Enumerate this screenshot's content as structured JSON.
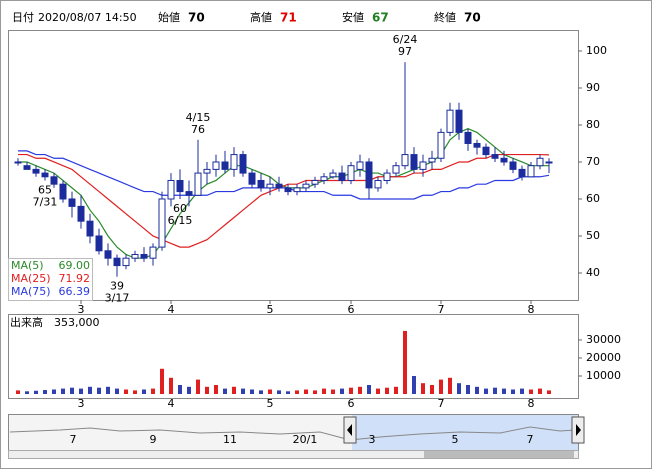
{
  "header": {
    "date_label": "日付",
    "date": "2020/08/07 14:50",
    "fields": [
      {
        "label": "始値",
        "value": 70,
        "color": "#000000"
      },
      {
        "label": "高値",
        "value": 71,
        "color": "#e00000"
      },
      {
        "label": "安値",
        "value": 67,
        "color": "#208020"
      },
      {
        "label": "終値",
        "value": 70,
        "color": "#000000"
      }
    ]
  },
  "chart_data": [
    {
      "type": "candlestick",
      "categories": [
        null,
        null,
        null,
        null,
        null,
        null,
        null,
        "3",
        null,
        null,
        null,
        null,
        null,
        null,
        null,
        null,
        null,
        "4",
        null,
        null,
        null,
        null,
        null,
        null,
        null,
        null,
        null,
        null,
        "5",
        null,
        null,
        null,
        null,
        null,
        null,
        null,
        null,
        "6",
        null,
        null,
        null,
        null,
        null,
        null,
        null,
        null,
        null,
        "7",
        null,
        null,
        null,
        null,
        null,
        null,
        null,
        null,
        null,
        "8",
        null,
        null
      ],
      "open": [
        70,
        69,
        68,
        67,
        66,
        64,
        60,
        58,
        54,
        50,
        46,
        44,
        42,
        44,
        45,
        44,
        47,
        60,
        65,
        62,
        61,
        67,
        68,
        70,
        68,
        72,
        67,
        65,
        63,
        64,
        63,
        62,
        63,
        64,
        65,
        66,
        67,
        65,
        68,
        70,
        63,
        65,
        67,
        69,
        72,
        68,
        70,
        71,
        78,
        84,
        78,
        75,
        74,
        72,
        71,
        70,
        68,
        66,
        69,
        70
      ],
      "high": [
        71,
        70,
        69,
        68,
        67,
        65,
        62,
        61,
        56,
        52,
        48,
        45,
        45,
        46,
        47,
        48,
        62,
        67,
        68,
        65,
        76,
        70,
        72,
        73,
        74,
        73,
        68,
        67,
        66,
        66,
        64,
        64,
        65,
        66,
        67,
        68,
        69,
        70,
        72,
        71,
        66,
        68,
        70,
        97,
        74,
        72,
        73,
        79,
        86,
        86,
        79,
        76,
        75,
        74,
        73,
        71,
        69,
        70,
        72,
        71
      ],
      "low": [
        69,
        68,
        66,
        65,
        63,
        59,
        55,
        52,
        48,
        45,
        42,
        39,
        41,
        43,
        43,
        42,
        46,
        58,
        60,
        58,
        61,
        64,
        66,
        67,
        66,
        66,
        63,
        62,
        61,
        62,
        61,
        61,
        62,
        63,
        64,
        65.5,
        64,
        64,
        66,
        60,
        62,
        64,
        66,
        68,
        67,
        66,
        68,
        70,
        77,
        76,
        73,
        72,
        71,
        70,
        69,
        67,
        65,
        66,
        68,
        67
      ],
      "close": [
        70,
        68,
        67,
        66,
        64,
        60,
        58,
        54,
        50,
        46,
        44,
        42,
        44,
        45,
        44,
        47,
        60,
        65,
        62,
        61,
        67,
        68,
        70,
        68,
        72,
        67,
        64,
        63,
        64,
        63,
        62,
        63,
        64,
        65,
        66,
        67,
        65,
        69,
        70,
        63,
        65,
        67,
        69,
        72,
        68,
        70,
        71,
        78,
        84,
        78,
        75,
        74,
        72,
        71,
        70,
        68,
        66,
        69,
        71,
        70
      ],
      "up_color": "#ffffff",
      "down_color": "#1c2c9c",
      "outline_color": "#1c2c9c",
      "lines": [
        {
          "name": "MA(5)",
          "color": "#2a8a2a",
          "last_label": "69.00",
          "values": [
            70,
            70,
            69,
            68,
            67,
            65,
            63,
            61,
            57,
            54,
            50,
            47,
            45,
            44,
            44,
            45,
            48,
            52,
            56,
            59,
            62,
            64,
            65,
            67,
            69,
            69,
            68,
            67,
            66,
            64,
            63,
            63,
            63,
            64,
            65,
            66,
            66,
            67,
            68,
            67,
            67,
            66,
            66,
            67,
            68,
            69,
            70,
            72,
            76,
            78,
            79,
            78,
            76,
            74,
            72,
            71,
            70,
            69,
            69,
            69
          ]
        },
        {
          "name": "MA(25)",
          "color": "#e02020",
          "last_label": "71.92",
          "values": [
            72,
            72,
            71,
            71,
            70,
            69,
            68,
            66,
            64,
            62,
            60,
            58,
            56,
            54,
            52,
            50,
            49,
            48,
            47,
            47,
            48,
            49,
            51,
            53,
            55,
            57,
            59,
            61,
            62,
            63,
            64,
            64,
            65,
            65,
            65,
            65,
            65,
            65,
            65,
            65,
            66,
            66,
            66,
            66,
            67,
            67,
            68,
            68,
            69,
            70,
            70,
            71,
            71,
            72,
            72,
            72,
            72,
            72,
            72,
            71.92
          ]
        },
        {
          "name": "MA(75)",
          "color": "#2a3ae0",
          "last_label": "66.39",
          "values": [
            73,
            73,
            72,
            72,
            71,
            71,
            70,
            69,
            68,
            67,
            66,
            65,
            64,
            63,
            62,
            62,
            61,
            61,
            61,
            61,
            61,
            61,
            62,
            62,
            62,
            63,
            63,
            63,
            63,
            63,
            63,
            62,
            62,
            62,
            62,
            61,
            61,
            61,
            60,
            60,
            60,
            60,
            60,
            60,
            60,
            61,
            61,
            62,
            62,
            63,
            63,
            64,
            64,
            65,
            65,
            65,
            66,
            66,
            66,
            66.39
          ]
        }
      ],
      "annotations": [
        {
          "date": "3/17",
          "value": 39,
          "side": "low"
        },
        {
          "date": "4/15",
          "value": 76,
          "side": "high"
        },
        {
          "date": "6/15",
          "value": 60,
          "side": "low"
        },
        {
          "date": "6/24",
          "value": 97,
          "side": "high"
        },
        {
          "date": "7/31",
          "value": 65,
          "side": "low"
        }
      ],
      "ylim": [
        32.7,
        105.4
      ],
      "yticks": [
        40,
        50,
        60,
        70,
        80,
        90,
        100
      ]
    },
    {
      "type": "bar",
      "title": "出来高",
      "title_value": "353,000",
      "categories": [
        null,
        null,
        null,
        null,
        null,
        null,
        null,
        "3",
        null,
        null,
        null,
        null,
        null,
        null,
        null,
        null,
        null,
        "4",
        null,
        null,
        null,
        null,
        null,
        null,
        null,
        null,
        null,
        null,
        "5",
        null,
        null,
        null,
        null,
        null,
        null,
        null,
        null,
        "6",
        null,
        null,
        null,
        null,
        null,
        null,
        null,
        null,
        null,
        "7",
        null,
        null,
        null,
        null,
        null,
        null,
        null,
        null,
        null,
        "8",
        null,
        null
      ],
      "values": [
        2000,
        1500,
        1800,
        2200,
        2500,
        3000,
        3500,
        3000,
        4000,
        3500,
        4000,
        3000,
        2500,
        2000,
        2500,
        3000,
        14000,
        9000,
        5000,
        4000,
        8000,
        4000,
        5000,
        3000,
        4000,
        3000,
        2500,
        2000,
        2500,
        2000,
        1500,
        2000,
        2500,
        2000,
        3000,
        2500,
        3000,
        3500,
        4000,
        5000,
        3000,
        3500,
        4000,
        35000,
        10000,
        6000,
        5000,
        8000,
        9000,
        6000,
        5000,
        4000,
        3000,
        3500,
        3000,
        2500,
        3000,
        2500,
        3000,
        2000
      ],
      "up_color": "#e02020",
      "down_color": "#3040b0",
      "ylim": [
        0,
        43300
      ],
      "yticks": [
        10000,
        20000,
        30000
      ]
    }
  ],
  "navigator": {
    "labels": [
      "7",
      "9",
      "11",
      "20/1",
      "3",
      "5",
      "7"
    ]
  }
}
